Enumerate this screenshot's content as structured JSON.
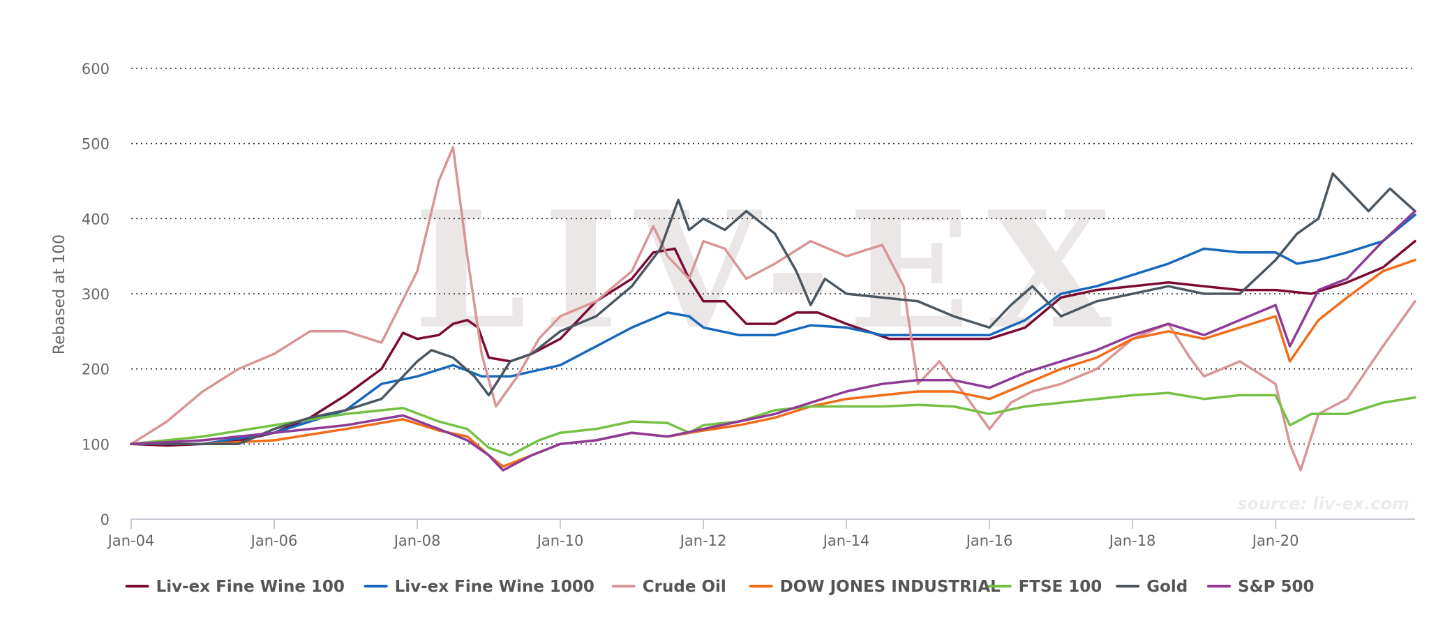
{
  "chart_data": {
    "type": "line",
    "title": "",
    "xlabel": "",
    "ylabel": "Rebased at 100",
    "ylim": [
      0,
      600
    ],
    "yticks": [
      0,
      100,
      200,
      300,
      400,
      500,
      600
    ],
    "xlim": [
      2004.0,
      2021.95
    ],
    "xticks": [
      {
        "value": 2004,
        "label": "Jan-04"
      },
      {
        "value": 2006,
        "label": "Jan-06"
      },
      {
        "value": 2008,
        "label": "Jan-08"
      },
      {
        "value": 2010,
        "label": "Jan-10"
      },
      {
        "value": 2012,
        "label": "Jan-12"
      },
      {
        "value": 2014,
        "label": "Jan-14"
      },
      {
        "value": 2016,
        "label": "Jan-16"
      },
      {
        "value": 2018,
        "label": "Jan-18"
      },
      {
        "value": 2020,
        "label": "Jan-20"
      }
    ],
    "grid": true,
    "legend_position": "bottom",
    "watermark": "LIV-EX",
    "source": "source: liv-ex.com",
    "series": [
      {
        "name": "Liv-ex Fine Wine 100",
        "color": "#7b0a35",
        "x": [
          2004.0,
          2004.5,
          2005.0,
          2005.5,
          2006.0,
          2006.5,
          2007.0,
          2007.5,
          2007.8,
          2008.0,
          2008.3,
          2008.5,
          2008.7,
          2008.85,
          2009.0,
          2009.3,
          2009.6,
          2010.0,
          2010.5,
          2011.0,
          2011.3,
          2011.6,
          2011.8,
          2012.0,
          2012.3,
          2012.6,
          2013.0,
          2013.3,
          2013.6,
          2014.0,
          2014.3,
          2014.6,
          2015.0,
          2015.5,
          2016.0,
          2016.5,
          2017.0,
          2017.5,
          2018.0,
          2018.5,
          2019.0,
          2019.5,
          2020.0,
          2020.5,
          2021.0,
          2021.5,
          2021.95
        ],
        "y": [
          100,
          98,
          100,
          104,
          115,
          135,
          165,
          200,
          248,
          240,
          245,
          260,
          265,
          255,
          215,
          210,
          220,
          240,
          290,
          320,
          355,
          360,
          320,
          290,
          290,
          260,
          260,
          275,
          275,
          260,
          250,
          240,
          240,
          240,
          240,
          255,
          295,
          305,
          310,
          315,
          310,
          305,
          305,
          300,
          315,
          335,
          370
        ]
      },
      {
        "name": "Liv-ex Fine Wine 1000",
        "color": "#1768bd",
        "x": [
          2004.0,
          2005.0,
          2006.0,
          2007.0,
          2007.5,
          2008.0,
          2008.5,
          2008.9,
          2009.3,
          2010.0,
          2010.5,
          2011.0,
          2011.5,
          2011.8,
          2012.0,
          2012.5,
          2013.0,
          2013.5,
          2014.0,
          2014.5,
          2015.0,
          2015.5,
          2016.0,
          2016.5,
          2017.0,
          2017.5,
          2018.0,
          2018.5,
          2019.0,
          2019.5,
          2020.0,
          2020.3,
          2020.6,
          2021.0,
          2021.5,
          2021.95
        ],
        "y": [
          100,
          100,
          115,
          145,
          180,
          190,
          205,
          190,
          190,
          205,
          230,
          255,
          275,
          270,
          255,
          245,
          245,
          258,
          255,
          245,
          245,
          245,
          245,
          265,
          300,
          310,
          325,
          340,
          360,
          355,
          355,
          340,
          345,
          355,
          370,
          405
        ]
      },
      {
        "name": "Crude Oil",
        "color": "#d99596",
        "x": [
          2004.0,
          2004.5,
          2005.0,
          2005.5,
          2006.0,
          2006.5,
          2007.0,
          2007.5,
          2008.0,
          2008.3,
          2008.5,
          2008.7,
          2008.9,
          2009.1,
          2009.4,
          2009.7,
          2010.0,
          2010.5,
          2011.0,
          2011.3,
          2011.5,
          2011.8,
          2012.0,
          2012.3,
          2012.6,
          2013.0,
          2013.5,
          2014.0,
          2014.5,
          2014.8,
          2015.0,
          2015.3,
          2015.7,
          2016.0,
          2016.3,
          2016.6,
          2017.0,
          2017.5,
          2018.0,
          2018.5,
          2018.8,
          2019.0,
          2019.5,
          2020.0,
          2020.2,
          2020.35,
          2020.6,
          2021.0,
          2021.5,
          2021.95
        ],
        "y": [
          100,
          130,
          170,
          200,
          220,
          250,
          250,
          235,
          330,
          450,
          495,
          350,
          220,
          150,
          190,
          240,
          270,
          290,
          330,
          390,
          350,
          320,
          370,
          360,
          320,
          340,
          370,
          350,
          365,
          310,
          180,
          210,
          160,
          120,
          155,
          170,
          180,
          200,
          240,
          260,
          215,
          190,
          210,
          180,
          100,
          65,
          140,
          160,
          230,
          290
        ]
      },
      {
        "name": "DOW JONES INDUSTRIAL",
        "color": "#f26c17",
        "x": [
          2004.0,
          2005.0,
          2006.0,
          2007.0,
          2007.8,
          2008.3,
          2008.7,
          2009.0,
          2009.2,
          2009.6,
          2010.0,
          2010.5,
          2011.0,
          2011.5,
          2012.0,
          2012.5,
          2013.0,
          2013.5,
          2014.0,
          2014.5,
          2015.0,
          2015.5,
          2016.0,
          2016.5,
          2017.0,
          2017.5,
          2018.0,
          2018.5,
          2019.0,
          2019.5,
          2020.0,
          2020.2,
          2020.6,
          2021.0,
          2021.5,
          2021.95
        ],
        "y": [
          100,
          100,
          105,
          120,
          133,
          118,
          110,
          85,
          70,
          85,
          100,
          105,
          115,
          110,
          118,
          125,
          135,
          150,
          160,
          165,
          170,
          170,
          160,
          180,
          200,
          215,
          240,
          250,
          240,
          255,
          270,
          210,
          265,
          295,
          330,
          345
        ]
      },
      {
        "name": "FTSE 100",
        "color": "#76c044",
        "x": [
          2004.0,
          2005.0,
          2006.0,
          2007.0,
          2007.8,
          2008.3,
          2008.7,
          2009.0,
          2009.3,
          2009.7,
          2010.0,
          2010.5,
          2011.0,
          2011.5,
          2011.8,
          2012.0,
          2012.5,
          2013.0,
          2013.5,
          2014.0,
          2014.5,
          2015.0,
          2015.5,
          2016.0,
          2016.5,
          2017.0,
          2017.5,
          2018.0,
          2018.5,
          2019.0,
          2019.5,
          2020.0,
          2020.2,
          2020.5,
          2021.0,
          2021.5,
          2021.95
        ],
        "y": [
          100,
          110,
          125,
          140,
          148,
          130,
          120,
          95,
          85,
          105,
          115,
          120,
          130,
          128,
          115,
          125,
          130,
          145,
          150,
          150,
          150,
          152,
          150,
          140,
          150,
          155,
          160,
          165,
          168,
          160,
          165,
          165,
          125,
          140,
          140,
          155,
          162
        ]
      },
      {
        "name": "Gold",
        "color": "#4a5761",
        "x": [
          2004.0,
          2005.0,
          2005.5,
          2006.0,
          2006.5,
          2007.0,
          2007.5,
          2008.0,
          2008.2,
          2008.5,
          2008.8,
          2009.0,
          2009.3,
          2009.6,
          2010.0,
          2010.5,
          2011.0,
          2011.4,
          2011.65,
          2011.8,
          2012.0,
          2012.3,
          2012.6,
          2012.8,
          2013.0,
          2013.3,
          2013.5,
          2013.7,
          2014.0,
          2014.5,
          2015.0,
          2015.5,
          2016.0,
          2016.3,
          2016.6,
          2017.0,
          2017.5,
          2018.0,
          2018.5,
          2019.0,
          2019.5,
          2020.0,
          2020.3,
          2020.6,
          2020.8,
          2021.0,
          2021.3,
          2021.6,
          2021.95
        ],
        "y": [
          100,
          100,
          100,
          120,
          135,
          145,
          160,
          210,
          225,
          215,
          190,
          165,
          210,
          220,
          250,
          270,
          310,
          360,
          425,
          385,
          400,
          385,
          410,
          395,
          380,
          330,
          285,
          320,
          300,
          295,
          290,
          270,
          255,
          285,
          310,
          270,
          290,
          300,
          310,
          300,
          300,
          345,
          380,
          400,
          460,
          440,
          410,
          440,
          410
        ]
      },
      {
        "name": "S&P 500",
        "color": "#8e3a97",
        "x": [
          2004.0,
          2005.0,
          2006.0,
          2007.0,
          2007.8,
          2008.3,
          2008.7,
          2009.0,
          2009.2,
          2009.6,
          2010.0,
          2010.5,
          2011.0,
          2011.5,
          2012.0,
          2012.5,
          2013.0,
          2013.5,
          2014.0,
          2014.5,
          2015.0,
          2015.5,
          2016.0,
          2016.5,
          2017.0,
          2017.5,
          2018.0,
          2018.5,
          2019.0,
          2019.5,
          2020.0,
          2020.2,
          2020.6,
          2021.0,
          2021.5,
          2021.95
        ],
        "y": [
          100,
          105,
          115,
          125,
          138,
          120,
          105,
          85,
          65,
          85,
          100,
          105,
          115,
          110,
          120,
          130,
          140,
          155,
          170,
          180,
          185,
          185,
          175,
          195,
          210,
          225,
          245,
          260,
          245,
          265,
          285,
          230,
          305,
          320,
          370,
          410
        ]
      }
    ]
  }
}
